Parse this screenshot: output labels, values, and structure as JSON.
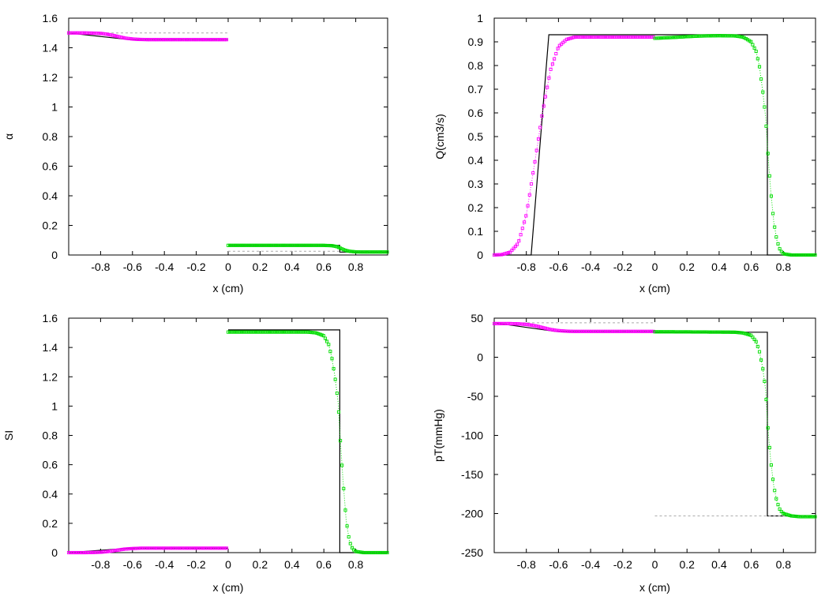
{
  "colors": {
    "left_series": "#ff00ff",
    "right_series": "#00dd00",
    "exact": "#000000",
    "initial": "#aaaaaa"
  },
  "chart_data": [
    {
      "type": "line",
      "xlabel": "x (cm)",
      "ylabel": "α",
      "xlim": [
        -1,
        1
      ],
      "ylim": [
        0,
        1.6
      ],
      "xticks": [
        -0.8,
        -0.6,
        -0.4,
        -0.2,
        0,
        0.2,
        0.4,
        0.6,
        0.8
      ],
      "yticks": [
        0,
        0.2,
        0.4,
        0.6,
        0.8,
        1,
        1.2,
        1.4,
        1.6
      ],
      "xtick_labels": [
        "-0.8",
        "-0.6",
        "-0.4",
        "-0.2",
        "0",
        "0.2",
        "0.4",
        "0.6",
        "0.8"
      ],
      "ytick_labels": [
        "0",
        "0.2",
        "0.4",
        "0.6",
        "0.8",
        "1",
        "1.2",
        "1.4",
        "1.6"
      ],
      "series": [
        {
          "role": "exact",
          "x": [
            -1,
            -0.62,
            0
          ],
          "y": [
            1.5,
            1.455,
            1.455
          ]
        },
        {
          "role": "exact",
          "x": [
            0,
            0.7,
            0.7,
            1
          ],
          "y": [
            0.065,
            0.065,
            0.02,
            0.02
          ]
        },
        {
          "role": "initial",
          "x": [
            -1,
            0
          ],
          "y": [
            1.5,
            1.5
          ]
        },
        {
          "role": "initial",
          "x": [
            0,
            1
          ],
          "y": [
            0.025,
            0.025
          ]
        },
        {
          "role": "left",
          "x": [
            -1,
            -0.95,
            -0.9,
            -0.85,
            -0.8,
            -0.75,
            -0.7,
            -0.65,
            -0.6,
            -0.55,
            -0.5,
            -0.4,
            -0.3,
            -0.2,
            -0.1,
            0
          ],
          "y": [
            1.5,
            1.5,
            1.5,
            1.499,
            1.497,
            1.49,
            1.478,
            1.466,
            1.459,
            1.456,
            1.455,
            1.455,
            1.455,
            1.455,
            1.455,
            1.455
          ]
        },
        {
          "role": "right",
          "x": [
            0,
            0.1,
            0.2,
            0.3,
            0.4,
            0.5,
            0.6,
            0.65,
            0.68,
            0.7,
            0.72,
            0.74,
            0.76,
            0.8,
            0.85,
            0.9,
            1
          ],
          "y": [
            0.065,
            0.065,
            0.065,
            0.065,
            0.065,
            0.065,
            0.065,
            0.063,
            0.057,
            0.048,
            0.038,
            0.03,
            0.025,
            0.021,
            0.02,
            0.02,
            0.02
          ]
        }
      ]
    },
    {
      "type": "line",
      "xlabel": "x (cm)",
      "ylabel": "Q(cm3/s)",
      "xlim": [
        -1,
        1
      ],
      "ylim": [
        0,
        1
      ],
      "xticks": [
        -0.8,
        -0.6,
        -0.4,
        -0.2,
        0,
        0.2,
        0.4,
        0.6,
        0.8
      ],
      "yticks": [
        0,
        0.1,
        0.2,
        0.3,
        0.4,
        0.5,
        0.6,
        0.7,
        0.8,
        0.9,
        1
      ],
      "xtick_labels": [
        "-0.8",
        "-0.6",
        "-0.4",
        "-0.2",
        "0",
        "0.2",
        "0.4",
        "0.6",
        "0.8"
      ],
      "ytick_labels": [
        "0",
        "0.1",
        "0.2",
        "0.3",
        "0.4",
        "0.5",
        "0.6",
        "0.7",
        "0.8",
        "0.9",
        "1"
      ],
      "series": [
        {
          "role": "exact",
          "x": [
            -1,
            -0.77,
            -0.66,
            0.7,
            0.7,
            1
          ],
          "y": [
            0,
            0,
            0.93,
            0.93,
            0,
            0
          ]
        },
        {
          "role": "left",
          "x": [
            -1,
            -0.95,
            -0.9,
            -0.85,
            -0.8,
            -0.75,
            -0.7,
            -0.65,
            -0.6,
            -0.55,
            -0.5,
            -0.45,
            -0.4,
            -0.3,
            -0.2,
            -0.1,
            0
          ],
          "y": [
            0,
            0.002,
            0.012,
            0.05,
            0.17,
            0.38,
            0.6,
            0.78,
            0.88,
            0.91,
            0.92,
            0.92,
            0.92,
            0.92,
            0.92,
            0.92,
            0.92
          ]
        },
        {
          "role": "right",
          "x": [
            0,
            0.1,
            0.2,
            0.3,
            0.4,
            0.5,
            0.55,
            0.6,
            0.63,
            0.65,
            0.67,
            0.69,
            0.7,
            0.72,
            0.74,
            0.76,
            0.78,
            0.8,
            0.85,
            0.9,
            1
          ],
          "y": [
            0.915,
            0.918,
            0.922,
            0.925,
            0.926,
            0.925,
            0.92,
            0.9,
            0.86,
            0.8,
            0.7,
            0.58,
            0.46,
            0.28,
            0.14,
            0.06,
            0.02,
            0.005,
            0,
            0,
            0
          ]
        }
      ]
    },
    {
      "type": "line",
      "xlabel": "x (cm)",
      "ylabel": "SI",
      "xlim": [
        -1,
        1
      ],
      "ylim": [
        0,
        1.6
      ],
      "xticks": [
        -0.8,
        -0.6,
        -0.4,
        -0.2,
        0,
        0.2,
        0.4,
        0.6,
        0.8
      ],
      "yticks": [
        0,
        0.2,
        0.4,
        0.6,
        0.8,
        1,
        1.2,
        1.4,
        1.6
      ],
      "xtick_labels": [
        "-0.8",
        "-0.6",
        "-0.4",
        "-0.2",
        "0",
        "0.2",
        "0.4",
        "0.6",
        "0.8"
      ],
      "ytick_labels": [
        "0",
        "0.2",
        "0.4",
        "0.6",
        "0.8",
        "1",
        "1.2",
        "1.4",
        "1.6"
      ],
      "series": [
        {
          "role": "exact",
          "x": [
            -1,
            -0.62,
            0
          ],
          "y": [
            0,
            0.03,
            0.03
          ]
        },
        {
          "role": "exact",
          "x": [
            0,
            0.7,
            0.7,
            1
          ],
          "y": [
            1.52,
            1.52,
            0,
            0
          ]
        },
        {
          "role": "left",
          "x": [
            -1,
            -0.9,
            -0.85,
            -0.8,
            -0.75,
            -0.7,
            -0.65,
            -0.6,
            -0.55,
            -0.5,
            -0.4,
            -0.3,
            -0.2,
            -0.1,
            0
          ],
          "y": [
            0,
            0,
            0.001,
            0.003,
            0.008,
            0.016,
            0.024,
            0.028,
            0.03,
            0.03,
            0.03,
            0.03,
            0.03,
            0.03,
            0.03
          ]
        },
        {
          "role": "right",
          "x": [
            0,
            0.1,
            0.2,
            0.3,
            0.4,
            0.5,
            0.55,
            0.6,
            0.63,
            0.65,
            0.67,
            0.69,
            0.7,
            0.72,
            0.74,
            0.76,
            0.78,
            0.8,
            0.85,
            0.9,
            1
          ],
          "y": [
            1.505,
            1.505,
            1.505,
            1.505,
            1.505,
            1.505,
            1.5,
            1.48,
            1.42,
            1.33,
            1.2,
            1.02,
            0.82,
            0.5,
            0.22,
            0.08,
            0.025,
            0.008,
            0,
            0,
            0
          ]
        }
      ]
    },
    {
      "type": "line",
      "xlabel": "x (cm)",
      "ylabel": "pT(mmHg)",
      "xlim": [
        -1,
        1
      ],
      "ylim": [
        -250,
        50
      ],
      "xticks": [
        -0.8,
        -0.6,
        -0.4,
        -0.2,
        0,
        0.2,
        0.4,
        0.6,
        0.8
      ],
      "yticks": [
        -250,
        -200,
        -150,
        -100,
        -50,
        0,
        50
      ],
      "xtick_labels": [
        "-0.8",
        "-0.6",
        "-0.4",
        "-0.2",
        "0",
        "0.2",
        "0.4",
        "0.6",
        "0.8"
      ],
      "ytick_labels": [
        "-250",
        "-200",
        "-150",
        "-100",
        "-50",
        "0",
        "50"
      ],
      "series": [
        {
          "role": "exact",
          "x": [
            -1,
            -0.62,
            0
          ],
          "y": [
            44,
            33,
            33
          ]
        },
        {
          "role": "exact",
          "x": [
            0,
            0.7,
            0.7,
            1
          ],
          "y": [
            32,
            32,
            -203,
            -203
          ]
        },
        {
          "role": "initial",
          "x": [
            -1,
            0
          ],
          "y": [
            44,
            44
          ]
        },
        {
          "role": "initial",
          "x": [
            0,
            1
          ],
          "y": [
            -203,
            -203
          ]
        },
        {
          "role": "left",
          "x": [
            -1,
            -0.9,
            -0.85,
            -0.8,
            -0.75,
            -0.7,
            -0.65,
            -0.6,
            -0.55,
            -0.5,
            -0.4,
            -0.3,
            -0.2,
            -0.1,
            0
          ],
          "y": [
            43,
            43,
            42.7,
            42,
            40.5,
            38,
            35.5,
            34,
            33.3,
            33,
            33,
            33,
            33,
            33,
            33
          ]
        },
        {
          "role": "right",
          "x": [
            0,
            0.1,
            0.2,
            0.3,
            0.4,
            0.5,
            0.55,
            0.6,
            0.63,
            0.65,
            0.67,
            0.69,
            0.7,
            0.72,
            0.74,
            0.76,
            0.78,
            0.8,
            0.85,
            0.9,
            0.95,
            1
          ],
          "y": [
            32.5,
            32.5,
            32.4,
            32.3,
            32.2,
            32,
            31,
            28,
            20,
            8,
            -12,
            -42,
            -82,
            -130,
            -165,
            -185,
            -196,
            -200,
            -203,
            -204,
            -204,
            -204
          ]
        }
      ]
    }
  ]
}
